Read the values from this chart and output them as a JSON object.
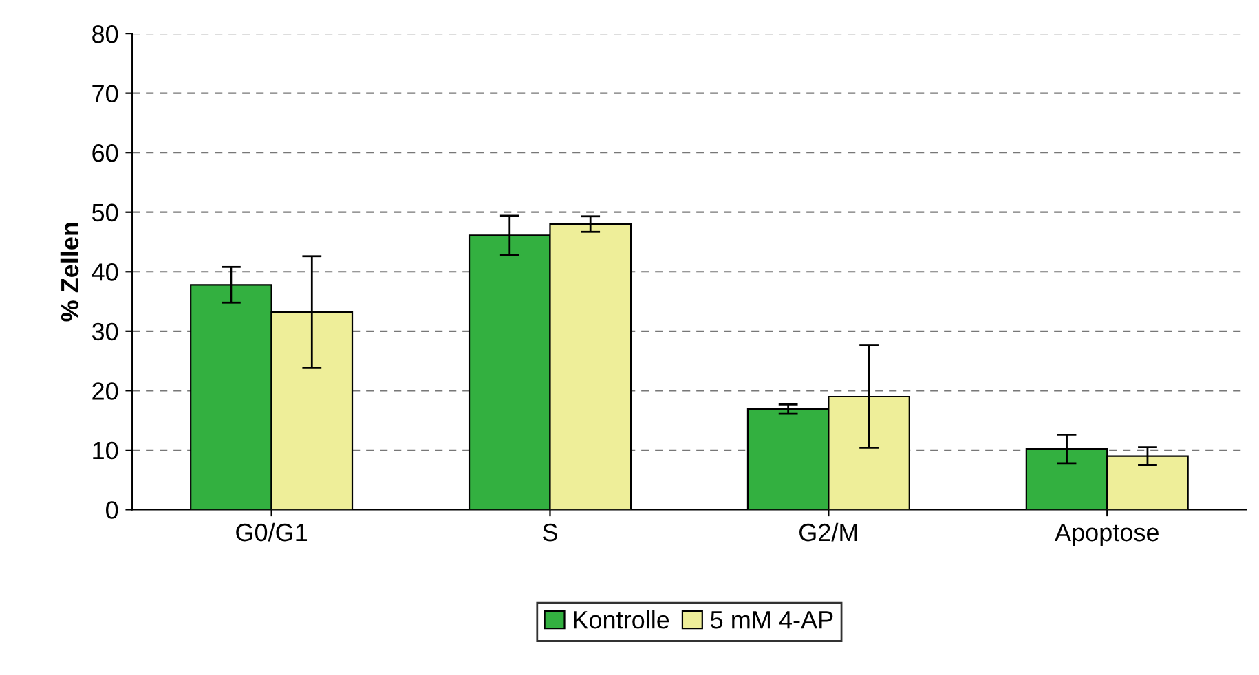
{
  "chart_data": {
    "type": "bar",
    "ylabel": "% Zellen",
    "categories": [
      "G0/G1",
      "S",
      "G2/M",
      "Apoptose"
    ],
    "series": [
      {
        "name": "Kontrolle",
        "color": "#33b040",
        "values": [
          37.8,
          46.1,
          16.9,
          10.2
        ],
        "errors": [
          3.0,
          3.3,
          0.8,
          2.4
        ]
      },
      {
        "name": "5 mM 4-AP",
        "color": "#eeee99",
        "values": [
          33.2,
          48.0,
          19.0,
          9.0
        ],
        "errors": [
          9.4,
          1.3,
          8.6,
          1.5
        ]
      }
    ],
    "ylim": [
      0,
      80
    ],
    "yticks": [
      0,
      10,
      20,
      30,
      40,
      50,
      60,
      70,
      80
    ],
    "grid": "y",
    "legend": "bottom"
  }
}
